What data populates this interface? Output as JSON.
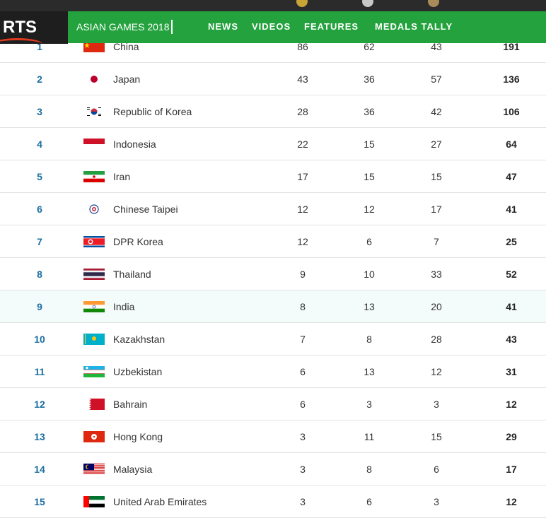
{
  "header": {
    "logo_text": "RTS",
    "event_title": "ASIAN GAMES 2018",
    "nav": [
      "NEWS",
      "VIDEOS",
      "FEATURES",
      "MEDALS TALLY"
    ]
  },
  "medals_table": {
    "rows": [
      {
        "rank": "1",
        "country": "China",
        "flag": "china-flag",
        "gold": "86",
        "silver": "62",
        "bronze": "43",
        "total": "191"
      },
      {
        "rank": "2",
        "country": "Japan",
        "flag": "japan-flag",
        "gold": "43",
        "silver": "36",
        "bronze": "57",
        "total": "136"
      },
      {
        "rank": "3",
        "country": "Republic of Korea",
        "flag": "korea-flag",
        "gold": "28",
        "silver": "36",
        "bronze": "42",
        "total": "106"
      },
      {
        "rank": "4",
        "country": "Indonesia",
        "flag": "indonesia-flag",
        "gold": "22",
        "silver": "15",
        "bronze": "27",
        "total": "64"
      },
      {
        "rank": "5",
        "country": "Iran",
        "flag": "iran-flag",
        "gold": "17",
        "silver": "15",
        "bronze": "15",
        "total": "47"
      },
      {
        "rank": "6",
        "country": "Chinese Taipei",
        "flag": "chinese-taipei-flag",
        "gold": "12",
        "silver": "12",
        "bronze": "17",
        "total": "41"
      },
      {
        "rank": "7",
        "country": "DPR Korea",
        "flag": "dpr-korea-flag",
        "gold": "12",
        "silver": "6",
        "bronze": "7",
        "total": "25"
      },
      {
        "rank": "8",
        "country": "Thailand",
        "flag": "thailand-flag",
        "gold": "9",
        "silver": "10",
        "bronze": "33",
        "total": "52"
      },
      {
        "rank": "9",
        "country": "India",
        "flag": "india-flag",
        "gold": "8",
        "silver": "13",
        "bronze": "20",
        "total": "41"
      },
      {
        "rank": "10",
        "country": "Kazakhstan",
        "flag": "kazakhstan-flag",
        "gold": "7",
        "silver": "8",
        "bronze": "28",
        "total": "43"
      },
      {
        "rank": "11",
        "country": "Uzbekistan",
        "flag": "uzbekistan-flag",
        "gold": "6",
        "silver": "13",
        "bronze": "12",
        "total": "31"
      },
      {
        "rank": "12",
        "country": "Bahrain",
        "flag": "bahrain-flag",
        "gold": "6",
        "silver": "3",
        "bronze": "3",
        "total": "12"
      },
      {
        "rank": "13",
        "country": "Hong Kong",
        "flag": "hong-kong-flag",
        "gold": "3",
        "silver": "11",
        "bronze": "15",
        "total": "29"
      },
      {
        "rank": "14",
        "country": "Malaysia",
        "flag": "malaysia-flag",
        "gold": "3",
        "silver": "8",
        "bronze": "6",
        "total": "17"
      },
      {
        "rank": "15",
        "country": "United Arab Emirates",
        "flag": "uae-flag",
        "gold": "3",
        "silver": "6",
        "bronze": "3",
        "total": "12"
      }
    ]
  },
  "colors": {
    "nav_green": "#23a23d",
    "rank_blue": "#1b6fa1",
    "highlight_row": "#f4fbfb"
  }
}
